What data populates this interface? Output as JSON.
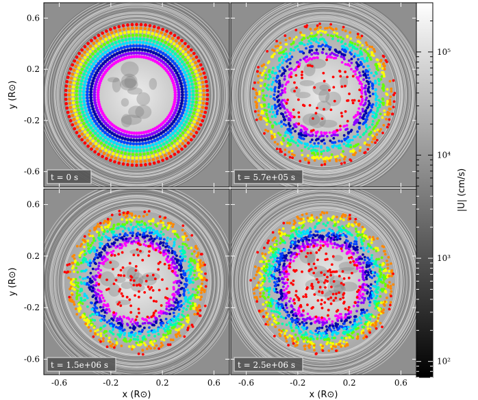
{
  "chart_data": {
    "type": "scatter",
    "panels": [
      {
        "time_label": "t = 0 s",
        "state": 0
      },
      {
        "time_label": "t = 5.7e+05 s",
        "state": 1
      },
      {
        "time_label": "t = 1.5e+06 s",
        "state": 2
      },
      {
        "time_label": "t = 2.5e+06 s",
        "state": 3
      }
    ],
    "xlabel": "x (R⊙)",
    "ylabel": "y (R⊙)",
    "xticks": [
      "-0.6",
      "-0.2",
      "0.2",
      "0.6"
    ],
    "yticks": [
      "0.6",
      "0.2",
      "-0.2",
      "-0.6"
    ],
    "xlim": [
      -0.72,
      0.72
    ],
    "ylim": [
      -0.72,
      0.72
    ],
    "colorbar": {
      "label": "|U| (cm/s)",
      "scale": "log",
      "range": [
        70,
        300000
      ],
      "ticks": [
        {
          "label": "10²",
          "value": 100
        },
        {
          "label": "10³",
          "value": 1000
        },
        {
          "label": "10⁴",
          "value": 10000
        },
        {
          "label": "10⁵",
          "value": 100000
        }
      ]
    },
    "tracer_rings": {
      "initial_radii": [
        0.3,
        0.55
      ],
      "colors": [
        "#ff0000",
        "#ff8800",
        "#ffff00",
        "#66ff00",
        "#00ffaa",
        "#00ddff",
        "#0044ff",
        "#0000aa",
        "#8800ff",
        "#ff00ff"
      ]
    }
  }
}
